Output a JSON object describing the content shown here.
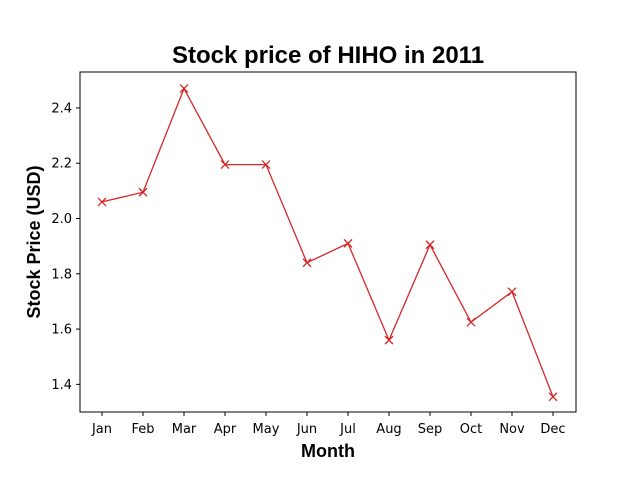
{
  "chart_data": {
    "type": "line",
    "title": "Stock price of HIHO in 2011",
    "xlabel": "Month",
    "ylabel": "Stock Price (USD)",
    "categories": [
      "Jan",
      "Feb",
      "Mar",
      "Apr",
      "May",
      "Jun",
      "Jul",
      "Aug",
      "Sep",
      "Oct",
      "Nov",
      "Dec"
    ],
    "series": [
      {
        "color": "#d62728",
        "marker": "x",
        "values": [
          2.06,
          2.095,
          2.47,
          2.195,
          2.195,
          1.84,
          1.91,
          1.56,
          1.905,
          1.625,
          1.735,
          1.355
        ]
      }
    ],
    "ylim": [
      1.3,
      2.53
    ],
    "yticks": [
      1.4,
      1.6,
      1.8,
      2.0,
      2.2,
      2.4
    ],
    "ytick_labels": [
      "1.4",
      "1.6",
      "1.8",
      "2.0",
      "2.2",
      "2.4"
    ],
    "grid": false,
    "legend": "none"
  }
}
